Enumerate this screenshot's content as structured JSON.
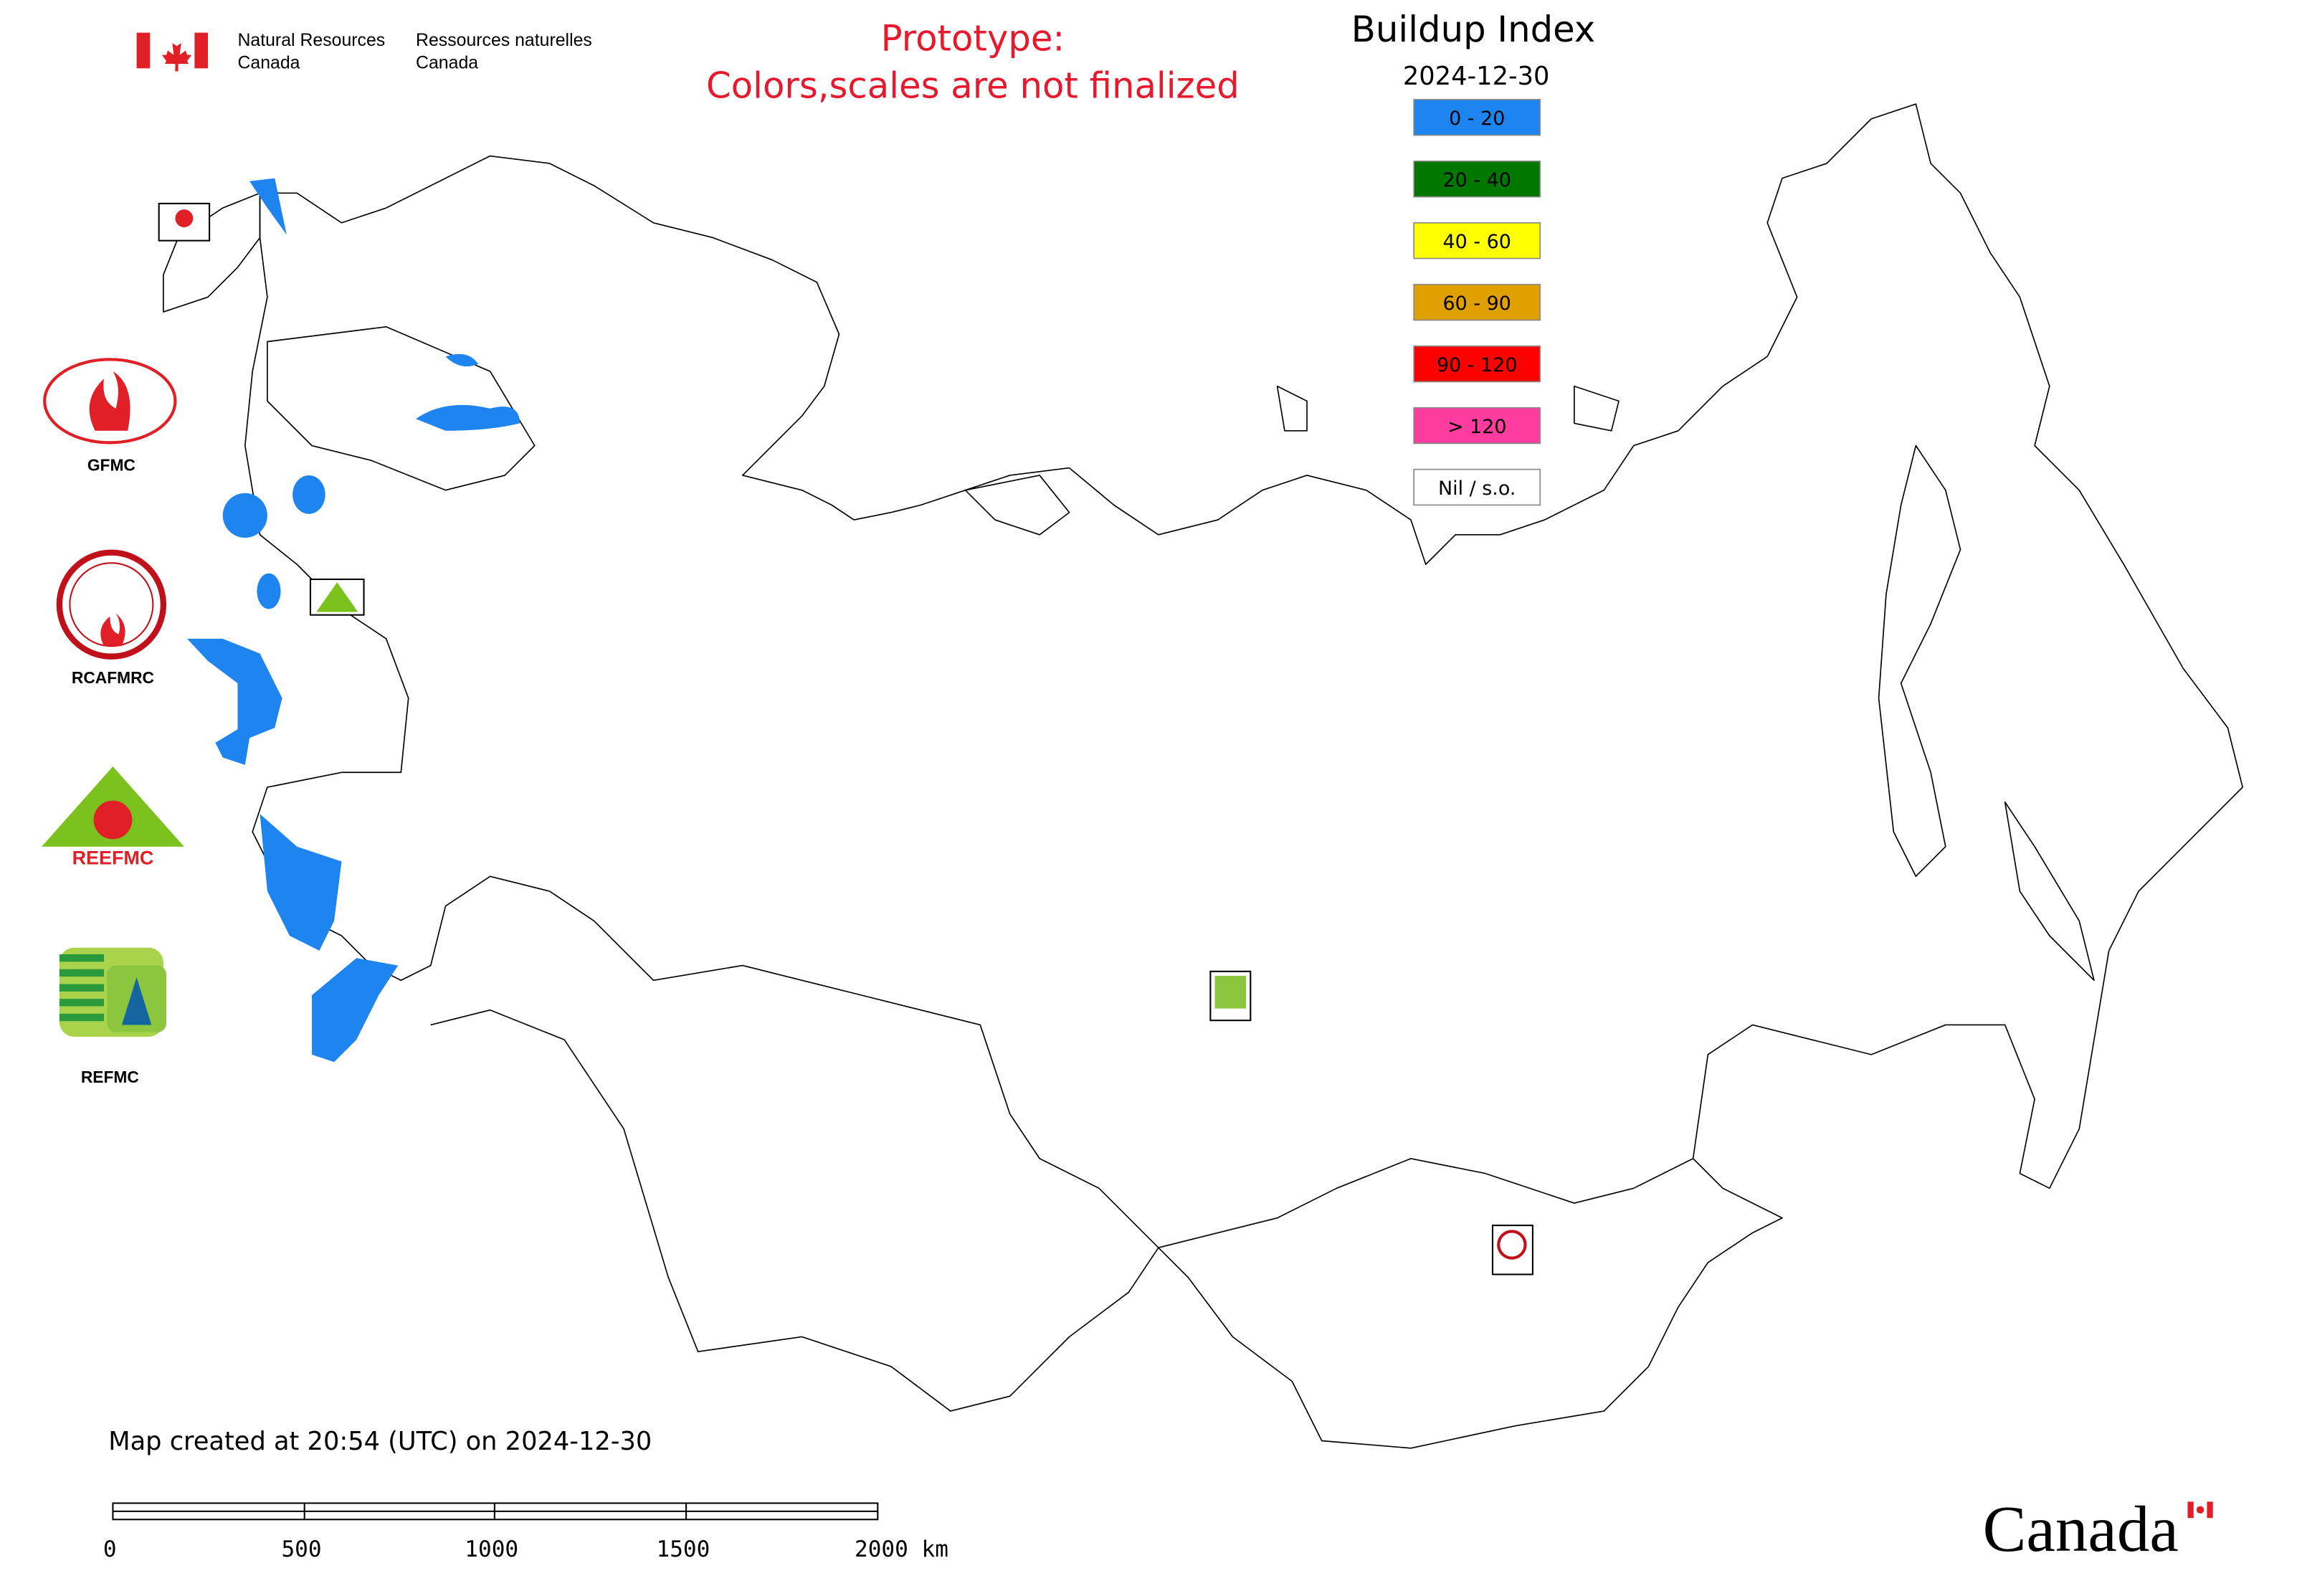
{
  "header": {
    "department_en": [
      "Natural Resources",
      "Canada"
    ],
    "department_fr": [
      "Ressources naturelles",
      "Canada"
    ],
    "notice": [
      "Prototype:",
      "Colors,scales are not finalized"
    ]
  },
  "map": {
    "title": "Buildup Index",
    "date": "2024-12-30",
    "legend": [
      {
        "label": "0 - 20",
        "color": "#1e84f0"
      },
      {
        "label": "20 - 40",
        "color": "#007800"
      },
      {
        "label": "40 - 60",
        "color": "#ffff00"
      },
      {
        "label": "60 - 90",
        "color": "#e0a000"
      },
      {
        "label": "90 - 120",
        "color": "#ff0000"
      },
      {
        "label": "> 120",
        "color": "#ff3ca0"
      },
      {
        "label": "Nil / s.o.",
        "color": "#ffffff"
      }
    ]
  },
  "logos": [
    "GFMC",
    "RCAFMRC",
    "REEFMC",
    "REFMC"
  ],
  "footer": {
    "created": "Map created at 20:54 (UTC) on 2024-12-30",
    "scale_labels": [
      "0",
      "500",
      "1000",
      "1500",
      "2000 km"
    ],
    "wordmark": "Canada"
  }
}
